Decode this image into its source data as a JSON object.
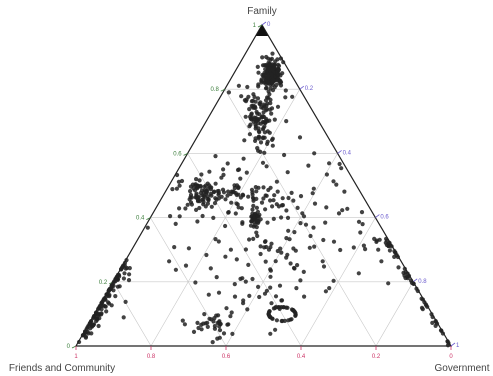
{
  "chart_data": {
    "type": "scatter",
    "subtype": "ternary",
    "axes": {
      "a": {
        "title": "Family",
        "color": "#3a7d3a"
      },
      "b": {
        "title": "Friends and Community",
        "color": "#cc3366"
      },
      "c": {
        "title": "Government",
        "color": "#6a5acd"
      }
    },
    "ticks": [
      "0",
      "0.2",
      "0.4",
      "0.6",
      "0.8",
      "1"
    ],
    "tick_values": [
      0,
      0.2,
      0.4,
      0.6,
      0.8,
      1
    ],
    "grid": true,
    "marker_color": "#222222",
    "clusters": [
      {
        "center": [
          0.85,
          0.05,
          0.1
        ],
        "spread": [
          0.08,
          0.02,
          0.02
        ],
        "count": 170,
        "shape": "vertical-column"
      },
      {
        "center": [
          0.72,
          0.15,
          0.13
        ],
        "spread": [
          0.06,
          0.04,
          0.04
        ],
        "count": 60,
        "shape": "blob"
      },
      {
        "center": [
          0.4,
          0.32,
          0.28
        ],
        "spread": [
          0.015,
          0.01,
          0.01
        ],
        "count": 35,
        "shape": "tight-blob"
      },
      {
        "center": [
          0.47,
          0.42,
          0.11
        ],
        "spread": [
          0.03,
          0.05,
          0.03
        ],
        "count": 60,
        "shape": "blob"
      },
      {
        "center": [
          0.1,
          0.4,
          0.5
        ],
        "spread": [
          0.04,
          0.06,
          0.06
        ],
        "count": 40,
        "shape": "ring"
      },
      {
        "center": [
          0.06,
          0.6,
          0.34
        ],
        "spread": [
          0.02,
          0.04,
          0.04
        ],
        "count": 35,
        "shape": "blob"
      }
    ],
    "lines": [
      {
        "from": [
          0.5,
          0.48,
          0.02
        ],
        "to": [
          0.45,
          0.2,
          0.35
        ],
        "count": 70,
        "jitter": 0.02
      },
      {
        "from": [
          0.25,
          0.75,
          0.0
        ],
        "to": [
          0.02,
          0.97,
          0.01
        ],
        "count": 120,
        "jitter": 0.012
      },
      {
        "from": [
          0.34,
          0.0,
          0.66
        ],
        "to": [
          0.02,
          0.0,
          0.98
        ],
        "count": 55,
        "jitter": 0.012
      },
      {
        "from": [
          0.8,
          0.1,
          0.1
        ],
        "to": [
          0.6,
          0.2,
          0.2
        ],
        "count": 50,
        "jitter": 0.025
      }
    ],
    "scatter_points": 200
  }
}
